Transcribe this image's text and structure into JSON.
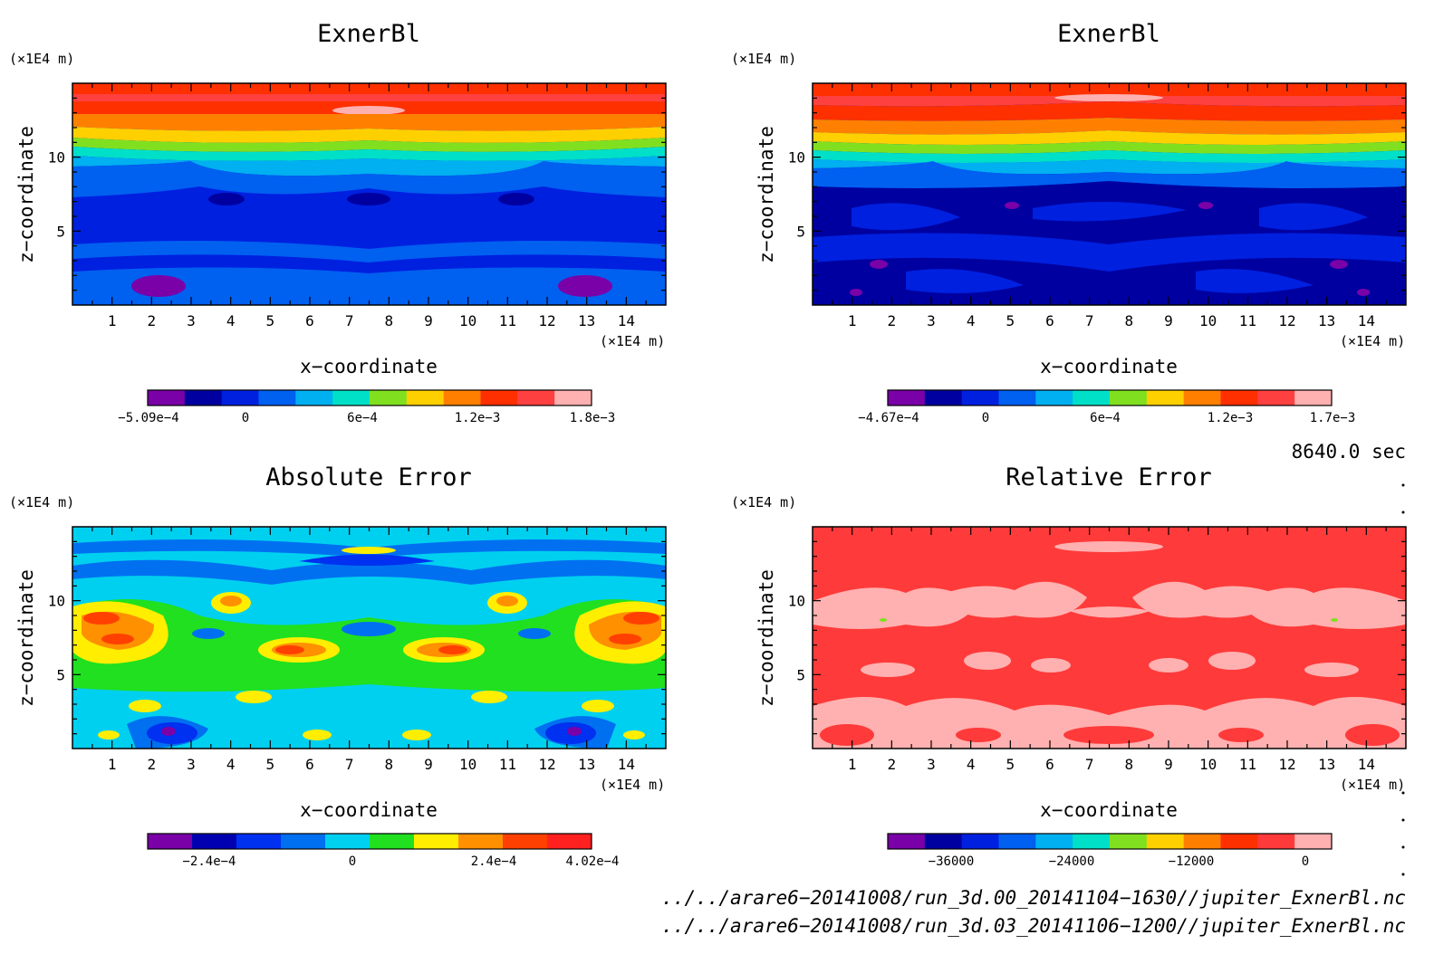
{
  "palette": {
    "rainbow": [
      "#7a00a8",
      "#0000a0",
      "#0020e0",
      "#0060f0",
      "#00b0f0",
      "#00e0c8",
      "#80e020",
      "#ffd000",
      "#ff8000",
      "#ff3000",
      "#ff4040",
      "#ffb0b0"
    ],
    "error": [
      "#7a00a8",
      "#0000b0",
      "#0030f0",
      "#0070f0",
      "#00d0f0",
      "#20e020",
      "#ffee00",
      "#ff9000",
      "#ff4000",
      "#ff2020"
    ],
    "relative": [
      "#7a00a8",
      "#0000a0",
      "#0020e0",
      "#0060f0",
      "#00b0f0",
      "#00e0c8",
      "#80e020",
      "#ffd000",
      "#ff8000",
      "#ff3000",
      "#ff3a3a",
      "#ffb0b0"
    ]
  },
  "panels": [
    {
      "id": "top-left",
      "title": "ExnerBl",
      "y_unit": "(×1E4 m)",
      "x_unit": "(×1E4 m)",
      "xlabel": "x−coordinate",
      "ylabel": "z−coordinate",
      "x_ticks": [
        "1",
        "2",
        "3",
        "4",
        "5",
        "6",
        "7",
        "8",
        "9",
        "10",
        "11",
        "12",
        "13",
        "14"
      ],
      "y_ticks": [
        "5",
        "10"
      ],
      "colorbar_labels": [
        "−5.09e−4",
        "0",
        "6e−4",
        "1.2e−3",
        "1.8e−3"
      ]
    },
    {
      "id": "top-right",
      "title": "ExnerBl",
      "y_unit": "(×1E4 m)",
      "x_unit": "(×1E4 m)",
      "xlabel": "x−coordinate",
      "ylabel": "z−coordinate",
      "x_ticks": [
        "1",
        "2",
        "3",
        "4",
        "5",
        "6",
        "7",
        "8",
        "9",
        "10",
        "11",
        "12",
        "13",
        "14"
      ],
      "y_ticks": [
        "5",
        "10"
      ],
      "colorbar_labels": [
        "−4.67e−4",
        "0",
        "6e−4",
        "1.2e−3",
        "1.7e−3"
      ]
    },
    {
      "id": "bottom-left",
      "title": "Absolute Error",
      "y_unit": "(×1E4 m)",
      "x_unit": "(×1E4 m)",
      "xlabel": "x−coordinate",
      "ylabel": "z−coordinate",
      "x_ticks": [
        "1",
        "2",
        "3",
        "4",
        "5",
        "6",
        "7",
        "8",
        "9",
        "10",
        "11",
        "12",
        "13",
        "14"
      ],
      "y_ticks": [
        "5",
        "10"
      ],
      "colorbar_labels": [
        "−2.4e−4",
        "0",
        "2.4e−4",
        "4.02e−4"
      ]
    },
    {
      "id": "bottom-right",
      "title": "Relative Error",
      "y_unit": "(×1E4 m)",
      "x_unit": "(×1E4 m)",
      "xlabel": "x−coordinate",
      "ylabel": "z−coordinate",
      "x_ticks": [
        "1",
        "2",
        "3",
        "4",
        "5",
        "6",
        "7",
        "8",
        "9",
        "10",
        "11",
        "12",
        "13",
        "14"
      ],
      "y_ticks": [
        "5",
        "10"
      ],
      "colorbar_labels": [
        "−36000",
        "−24000",
        "−12000",
        "0"
      ]
    }
  ],
  "time_label": "8640.0 sec",
  "file_paths": [
    "../../arare6−20141008/run_3d.00_20141104−1630//jupiter_ExnerBl.nc",
    "../../arare6−20141008/run_3d.03_20141106−1200//jupiter_ExnerBl.nc"
  ],
  "chart_data": [
    {
      "type": "heatmap",
      "title": "ExnerBl",
      "xlabel": "x−coordinate",
      "ylabel": "z−coordinate",
      "x_unit": "(×1E4 m)",
      "y_unit": "(×1E4 m)",
      "xlim": [
        0,
        15
      ],
      "ylim": [
        0,
        15
      ],
      "x_ticks": [
        1,
        2,
        3,
        4,
        5,
        6,
        7,
        8,
        9,
        10,
        11,
        12,
        13,
        14
      ],
      "y_ticks": [
        5,
        10
      ],
      "colorbar": {
        "min": -0.000509,
        "max": 0.0018,
        "tick_values": [
          -0.000509,
          0,
          0.0006,
          0.0012,
          0.0018
        ]
      },
      "description_levels": "stratified: low values below z=10, high values near top"
    },
    {
      "type": "heatmap",
      "title": "ExnerBl",
      "xlabel": "x−coordinate",
      "ylabel": "z−coordinate",
      "x_unit": "(×1E4 m)",
      "y_unit": "(×1E4 m)",
      "xlim": [
        0,
        15
      ],
      "ylim": [
        0,
        15
      ],
      "x_ticks": [
        1,
        2,
        3,
        4,
        5,
        6,
        7,
        8,
        9,
        10,
        11,
        12,
        13,
        14
      ],
      "y_ticks": [
        5,
        10
      ],
      "colorbar": {
        "min": -0.000467,
        "max": 0.0017,
        "tick_values": [
          -0.000467,
          0,
          0.0006,
          0.0012,
          0.0017
        ]
      }
    },
    {
      "type": "heatmap",
      "title": "Absolute Error",
      "xlabel": "x−coordinate",
      "ylabel": "z−coordinate",
      "x_unit": "(×1E4 m)",
      "y_unit": "(×1E4 m)",
      "xlim": [
        0,
        15
      ],
      "ylim": [
        0,
        15
      ],
      "x_ticks": [
        1,
        2,
        3,
        4,
        5,
        6,
        7,
        8,
        9,
        10,
        11,
        12,
        13,
        14
      ],
      "y_ticks": [
        5,
        10
      ],
      "colorbar": {
        "max": 0.000402,
        "tick_values": [
          -0.00024,
          0,
          0.00024,
          0.000402
        ]
      }
    },
    {
      "type": "heatmap",
      "title": "Relative Error",
      "xlabel": "x−coordinate",
      "ylabel": "z−coordinate",
      "x_unit": "(×1E4 m)",
      "y_unit": "(×1E4 m)",
      "xlim": [
        0,
        15
      ],
      "ylim": [
        0,
        15
      ],
      "x_ticks": [
        1,
        2,
        3,
        4,
        5,
        6,
        7,
        8,
        9,
        10,
        11,
        12,
        13,
        14
      ],
      "y_ticks": [
        5,
        10
      ],
      "colorbar": {
        "max": 0,
        "tick_values": [
          -36000,
          -24000,
          -12000,
          0
        ]
      }
    }
  ]
}
